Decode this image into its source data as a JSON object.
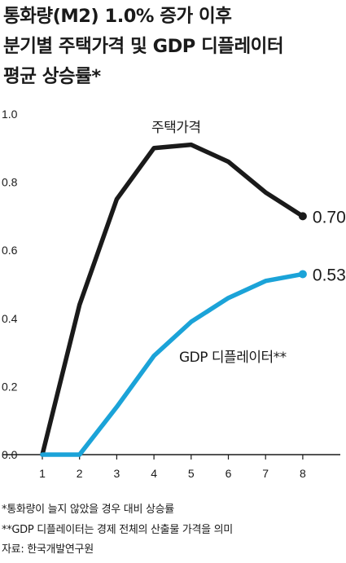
{
  "title": {
    "line1": "통화량(M2) 1.0% 증가 이후",
    "line2": "분기별 주택가격 및 GDP 디플레이터",
    "line3": "평균 상승률*"
  },
  "chart_data": {
    "type": "line",
    "x": [
      1,
      2,
      3,
      4,
      5,
      6,
      7,
      8
    ],
    "ylim": [
      0.0,
      1.0
    ],
    "yticks": [
      "0.0",
      "0.2",
      "0.4",
      "0.6",
      "0.8",
      "1.0"
    ],
    "xticks": [
      "1",
      "2",
      "3",
      "4",
      "5",
      "6",
      "7",
      "8"
    ],
    "grid": false,
    "series": [
      {
        "name": "주택가격",
        "color": "#1a1a1a",
        "values": [
          0.0,
          0.44,
          0.75,
          0.9,
          0.91,
          0.86,
          0.77,
          0.7
        ],
        "end_label": "0.70"
      },
      {
        "name": "GDP 디플레이터**",
        "color": "#1ba3d8",
        "values": [
          0.0,
          0.0,
          0.14,
          0.29,
          0.39,
          0.46,
          0.51,
          0.53
        ],
        "end_label": "0.53"
      }
    ]
  },
  "notes": {
    "note1": "*통화량이 늘지 않았을 경우 대비 상승률",
    "note2": "**GDP 디플레이터는 경제 전체의 산출물 가격을 의미",
    "source": "자료: 한국개발연구원"
  }
}
